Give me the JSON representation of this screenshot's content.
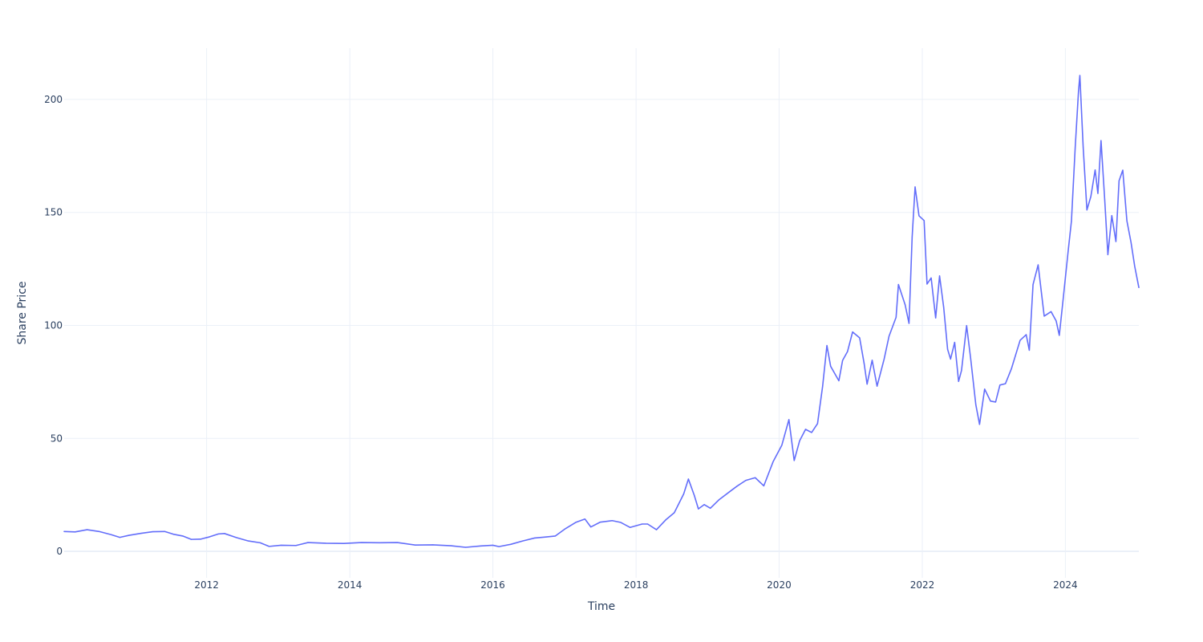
{
  "chart_data": {
    "type": "line",
    "title": "",
    "xlabel": "Time",
    "ylabel": "Share Price",
    "x_domain": [
      "2010-01-04",
      "2025-01-10"
    ],
    "ylim": [
      -11.7,
      222.7
    ],
    "x_ticks": [
      {
        "date": "2012-01-01",
        "label": "2012"
      },
      {
        "date": "2014-01-01",
        "label": "2014"
      },
      {
        "date": "2016-01-01",
        "label": "2016"
      },
      {
        "date": "2018-01-01",
        "label": "2018"
      },
      {
        "date": "2020-01-01",
        "label": "2020"
      },
      {
        "date": "2022-01-01",
        "label": "2022"
      },
      {
        "date": "2024-01-01",
        "label": "2024"
      }
    ],
    "y_ticks": [
      {
        "value": 0,
        "label": "0"
      },
      {
        "value": 50,
        "label": "50"
      },
      {
        "value": 100,
        "label": "100"
      },
      {
        "value": 150,
        "label": "150"
      },
      {
        "value": 200,
        "label": "200"
      }
    ],
    "grid": true,
    "series": [
      {
        "color": "#636efa",
        "points": [
          [
            "2010-01-04",
            8.8
          ],
          [
            "2010-03-01",
            8.6
          ],
          [
            "2010-05-01",
            9.6
          ],
          [
            "2010-07-01",
            8.8
          ],
          [
            "2010-09-01",
            7.4
          ],
          [
            "2010-10-15",
            6.2
          ],
          [
            "2010-12-01",
            7.1
          ],
          [
            "2011-02-01",
            8.0
          ],
          [
            "2011-04-01",
            8.7
          ],
          [
            "2011-06-01",
            8.8
          ],
          [
            "2011-07-15",
            7.6
          ],
          [
            "2011-09-01",
            6.8
          ],
          [
            "2011-10-15",
            5.3
          ],
          [
            "2011-12-01",
            5.4
          ],
          [
            "2012-01-15",
            6.4
          ],
          [
            "2012-03-01",
            7.7
          ],
          [
            "2012-04-01",
            7.9
          ],
          [
            "2012-06-01",
            6.1
          ],
          [
            "2012-08-01",
            4.6
          ],
          [
            "2012-10-01",
            3.8
          ],
          [
            "2012-11-15",
            2.2
          ],
          [
            "2013-01-15",
            2.7
          ],
          [
            "2013-04-01",
            2.6
          ],
          [
            "2013-06-01",
            3.9
          ],
          [
            "2013-09-01",
            3.6
          ],
          [
            "2013-12-01",
            3.5
          ],
          [
            "2014-03-01",
            3.9
          ],
          [
            "2014-06-01",
            3.8
          ],
          [
            "2014-09-01",
            3.9
          ],
          [
            "2014-12-01",
            2.8
          ],
          [
            "2015-03-01",
            2.9
          ],
          [
            "2015-06-01",
            2.5
          ],
          [
            "2015-08-15",
            1.8
          ],
          [
            "2015-11-01",
            2.4
          ],
          [
            "2016-01-01",
            2.7
          ],
          [
            "2016-02-01",
            2.1
          ],
          [
            "2016-04-01",
            3.1
          ],
          [
            "2016-06-01",
            4.6
          ],
          [
            "2016-08-01",
            5.9
          ],
          [
            "2016-10-01",
            6.4
          ],
          [
            "2016-11-15",
            6.8
          ],
          [
            "2017-01-01",
            9.8
          ],
          [
            "2017-03-01",
            12.9
          ],
          [
            "2017-04-15",
            14.3
          ],
          [
            "2017-05-15",
            10.8
          ],
          [
            "2017-07-01",
            12.9
          ],
          [
            "2017-09-01",
            13.6
          ],
          [
            "2017-10-15",
            12.8
          ],
          [
            "2017-12-01",
            10.6
          ],
          [
            "2018-02-01",
            12.1
          ],
          [
            "2018-03-01",
            12.1
          ],
          [
            "2018-04-15",
            9.6
          ],
          [
            "2018-06-01",
            13.9
          ],
          [
            "2018-07-15",
            17.1
          ],
          [
            "2018-09-01",
            25.4
          ],
          [
            "2018-09-25",
            32.0
          ],
          [
            "2018-10-25",
            24.8
          ],
          [
            "2018-11-15",
            18.8
          ],
          [
            "2018-12-15",
            20.7
          ],
          [
            "2019-01-15",
            19.1
          ],
          [
            "2019-03-01",
            22.9
          ],
          [
            "2019-05-01",
            26.9
          ],
          [
            "2019-06-01",
            28.9
          ],
          [
            "2019-07-15",
            31.4
          ],
          [
            "2019-09-01",
            32.6
          ],
          [
            "2019-10-15",
            29.0
          ],
          [
            "2019-12-01",
            39.6
          ],
          [
            "2020-01-15",
            47.0
          ],
          [
            "2020-02-20",
            58.3
          ],
          [
            "2020-03-18",
            40.2
          ],
          [
            "2020-04-15",
            49.0
          ],
          [
            "2020-05-15",
            54.0
          ],
          [
            "2020-06-15",
            52.6
          ],
          [
            "2020-07-15",
            56.5
          ],
          [
            "2020-08-10",
            73.0
          ],
          [
            "2020-09-01",
            91.1
          ],
          [
            "2020-09-20",
            81.9
          ],
          [
            "2020-11-01",
            75.5
          ],
          [
            "2020-11-20",
            84.5
          ],
          [
            "2020-12-15",
            88.4
          ],
          [
            "2021-01-10",
            97.1
          ],
          [
            "2021-02-15",
            94.5
          ],
          [
            "2021-03-10",
            83.1
          ],
          [
            "2021-03-25",
            74.0
          ],
          [
            "2021-04-20",
            84.6
          ],
          [
            "2021-05-15",
            73.1
          ],
          [
            "2021-06-20",
            85.1
          ],
          [
            "2021-07-15",
            95.2
          ],
          [
            "2021-08-20",
            103.6
          ],
          [
            "2021-09-01",
            118.1
          ],
          [
            "2021-10-05",
            109.2
          ],
          [
            "2021-10-25",
            100.9
          ],
          [
            "2021-11-10",
            139.1
          ],
          [
            "2021-11-25",
            161.3
          ],
          [
            "2021-12-15",
            148.5
          ],
          [
            "2022-01-10",
            146.4
          ],
          [
            "2022-01-25",
            118.3
          ],
          [
            "2022-02-15",
            121.0
          ],
          [
            "2022-03-10",
            103.3
          ],
          [
            "2022-03-30",
            121.9
          ],
          [
            "2022-04-20",
            108.0
          ],
          [
            "2022-05-10",
            89.4
          ],
          [
            "2022-05-25",
            85.1
          ],
          [
            "2022-06-15",
            92.5
          ],
          [
            "2022-07-05",
            75.2
          ],
          [
            "2022-07-20",
            80.1
          ],
          [
            "2022-08-15",
            99.9
          ],
          [
            "2022-09-05",
            85.1
          ],
          [
            "2022-10-01",
            64.9
          ],
          [
            "2022-10-20",
            56.2
          ],
          [
            "2022-11-15",
            71.8
          ],
          [
            "2022-12-15",
            66.5
          ],
          [
            "2023-01-10",
            66.1
          ],
          [
            "2023-02-01",
            73.6
          ],
          [
            "2023-03-01",
            74.2
          ],
          [
            "2023-04-01",
            80.9
          ],
          [
            "2023-05-15",
            93.4
          ],
          [
            "2023-06-15",
            95.9
          ],
          [
            "2023-07-01",
            89.0
          ],
          [
            "2023-07-20",
            118.1
          ],
          [
            "2023-08-15",
            126.8
          ],
          [
            "2023-09-15",
            104.1
          ],
          [
            "2023-10-20",
            106.1
          ],
          [
            "2023-11-15",
            102.0
          ],
          [
            "2023-12-01",
            95.6
          ],
          [
            "2023-12-20",
            111.0
          ],
          [
            "2024-01-15",
            132.7
          ],
          [
            "2024-02-01",
            146.2
          ],
          [
            "2024-02-20",
            178.4
          ],
          [
            "2024-03-08",
            203.5
          ],
          [
            "2024-03-15",
            210.6
          ],
          [
            "2024-04-01",
            178.7
          ],
          [
            "2024-04-20",
            151.1
          ],
          [
            "2024-05-10",
            157.0
          ],
          [
            "2024-06-01",
            168.8
          ],
          [
            "2024-06-15",
            158.4
          ],
          [
            "2024-07-01",
            181.8
          ],
          [
            "2024-07-20",
            155.4
          ],
          [
            "2024-08-05",
            131.3
          ],
          [
            "2024-08-25",
            148.6
          ],
          [
            "2024-09-15",
            137.1
          ],
          [
            "2024-10-01",
            164.0
          ],
          [
            "2024-10-20",
            168.7
          ],
          [
            "2024-11-10",
            146.3
          ],
          [
            "2024-12-01",
            136.8
          ],
          [
            "2024-12-20",
            126.1
          ],
          [
            "2025-01-10",
            116.8
          ]
        ]
      }
    ]
  }
}
